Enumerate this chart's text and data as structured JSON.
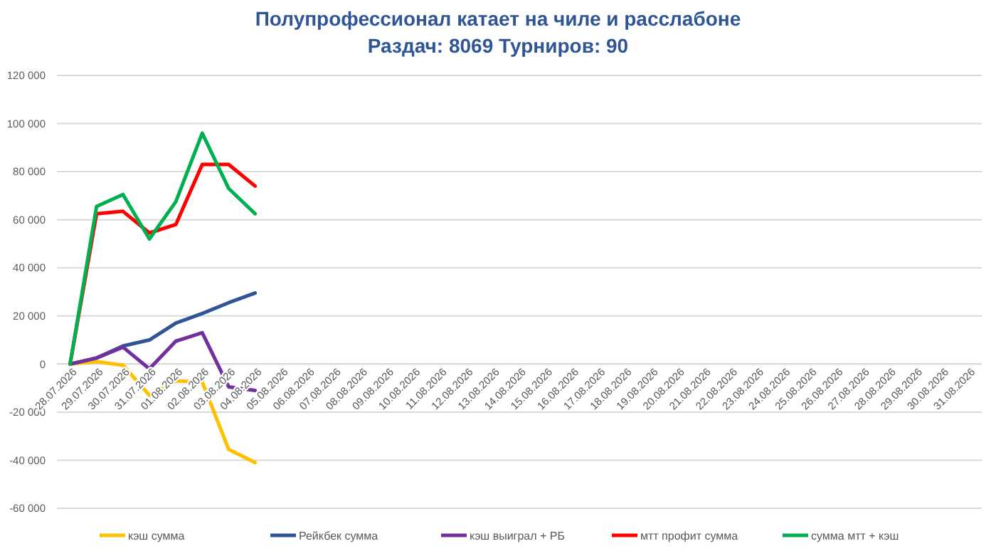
{
  "chart_data": {
    "type": "line",
    "title": "Полупрофессионал катает на чиле и расслабоне",
    "subtitle": "Раздач: 8069 Турниров: 90",
    "categories": [
      "28.07.2026",
      "29.07.2026",
      "30.07.2026",
      "31.07.2026",
      "01.08.2026",
      "02.08.2026",
      "03.08.2026",
      "04.08.2026",
      "05.08.2026",
      "06.08.2026",
      "07.08.2026",
      "08.08.2026",
      "09.08.2026",
      "10.08.2026",
      "11.08.2026",
      "12.08.2026",
      "13.08.2026",
      "14.08.2026",
      "15.08.2026",
      "16.08.2026",
      "17.08.2026",
      "18.08.2026",
      "19.08.2026",
      "20.08.2026",
      "21.08.2026",
      "22.08.2026",
      "23.08.2026",
      "24.08.2026",
      "25.08.2026",
      "26.08.2026",
      "27.08.2026",
      "28.08.2026",
      "29.08.2026",
      "30.08.2026",
      "31.08.2026"
    ],
    "series": [
      {
        "name": "кэш сумма",
        "color": "#ffc000",
        "values": [
          0,
          1000,
          -500,
          -13000,
          -7000,
          -7500,
          -35500,
          -41000,
          null,
          null,
          null,
          null,
          null,
          null,
          null,
          null,
          null,
          null,
          null,
          null,
          null,
          null,
          null,
          null,
          null,
          null,
          null,
          null,
          null,
          null,
          null,
          null,
          null,
          null,
          null
        ]
      },
      {
        "name": "Рейкбек сумма",
        "color": "#2f5597",
        "values": [
          0,
          2500,
          7500,
          10000,
          17000,
          21000,
          25500,
          29500,
          null,
          null,
          null,
          null,
          null,
          null,
          null,
          null,
          null,
          null,
          null,
          null,
          null,
          null,
          null,
          null,
          null,
          null,
          null,
          null,
          null,
          null,
          null,
          null,
          null,
          null,
          null
        ]
      },
      {
        "name": "кэш выиграл + РБ",
        "color": "#7030a0",
        "values": [
          0,
          2500,
          7000,
          -2000,
          9500,
          13000,
          -9500,
          -11000,
          null,
          null,
          null,
          null,
          null,
          null,
          null,
          null,
          null,
          null,
          null,
          null,
          null,
          null,
          null,
          null,
          null,
          null,
          null,
          null,
          null,
          null,
          null,
          null,
          null,
          null,
          null
        ]
      },
      {
        "name": "мтт профит сумма",
        "color": "#ff0000",
        "values": [
          0,
          62500,
          63500,
          54500,
          58000,
          83000,
          83000,
          74000,
          null,
          null,
          null,
          null,
          null,
          null,
          null,
          null,
          null,
          null,
          null,
          null,
          null,
          null,
          null,
          null,
          null,
          null,
          null,
          null,
          null,
          null,
          null,
          null,
          null,
          null,
          null
        ]
      },
      {
        "name": "сумма мтт + кэш",
        "color": "#00b050",
        "values": [
          0,
          65500,
          70500,
          52000,
          67500,
          96000,
          73000,
          62500,
          null,
          null,
          null,
          null,
          null,
          null,
          null,
          null,
          null,
          null,
          null,
          null,
          null,
          null,
          null,
          null,
          null,
          null,
          null,
          null,
          null,
          null,
          null,
          null,
          null,
          null,
          null
        ]
      }
    ],
    "ylim": [
      -60000,
      120000
    ],
    "yticks": [
      {
        "value": -60000,
        "label": "-60 000"
      },
      {
        "value": -40000,
        "label": "-40 000"
      },
      {
        "value": -20000,
        "label": "-20 000"
      },
      0,
      {
        "value": 20000,
        "label": "20 000"
      },
      {
        "value": 40000,
        "label": "40 000"
      },
      {
        "value": 60000,
        "label": "60 000"
      },
      {
        "value": 80000,
        "label": "80 000"
      },
      {
        "value": 100000,
        "label": "100 000"
      },
      {
        "value": 120000,
        "label": "120 000"
      }
    ],
    "grid": "y",
    "legend": "bottom",
    "marker": "none",
    "line_style": "solid"
  }
}
